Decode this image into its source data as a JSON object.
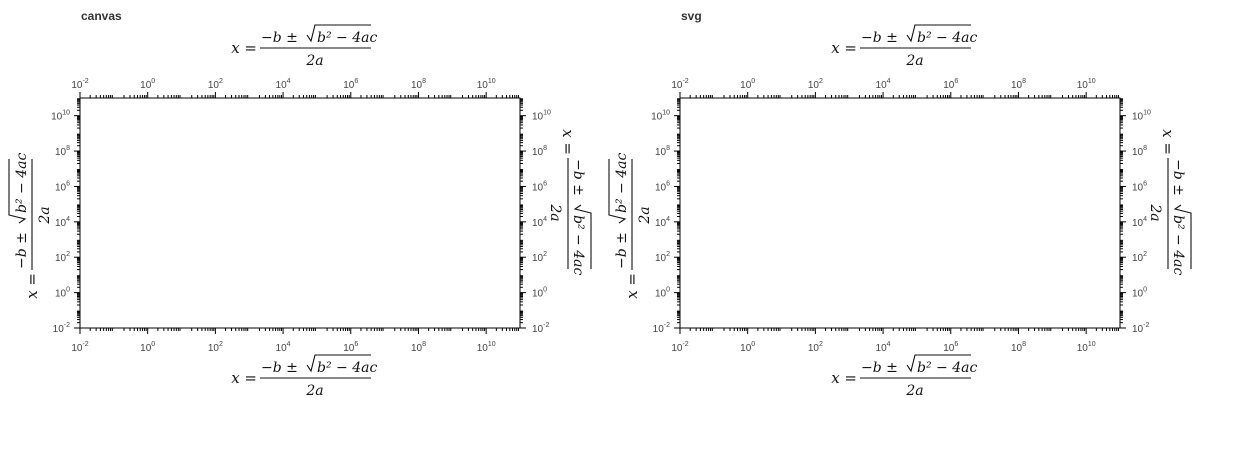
{
  "panels": [
    {
      "title": "canvas"
    },
    {
      "title": "svg"
    }
  ],
  "chart_data": [
    {
      "type": "scatter",
      "title": "",
      "xscale": "log",
      "yscale": "log",
      "xlim": [
        0.01,
        100000000000
      ],
      "ylim": [
        0.01,
        100000000000
      ],
      "x_ticks": [
        "10^-2",
        "10^0",
        "10^2",
        "10^4",
        "10^6",
        "10^8",
        "10^10"
      ],
      "y_ticks": [
        "10^-2",
        "10^0",
        "10^2",
        "10^4",
        "10^6",
        "10^8",
        "10^10"
      ],
      "xlabel": "x = (−b ± √(b² − 4ac)) / 2a",
      "ylabel": "x = (−b ± √(b² − 4ac)) / 2a",
      "x2label": "x = (−b ± √(b² − 4ac)) / 2a",
      "y2label": "x = (−b ± √(b² − 4ac)) / 2a",
      "grid": false,
      "series": []
    },
    {
      "type": "scatter",
      "title": "",
      "xscale": "log",
      "yscale": "log",
      "xlim": [
        0.01,
        100000000000
      ],
      "ylim": [
        0.01,
        100000000000
      ],
      "x_ticks": [
        "10^-2",
        "10^0",
        "10^2",
        "10^4",
        "10^6",
        "10^8",
        "10^10"
      ],
      "y_ticks": [
        "10^-2",
        "10^0",
        "10^2",
        "10^4",
        "10^6",
        "10^8",
        "10^10"
      ],
      "xlabel": "x = (−b ± √(b² − 4ac)) / 2a",
      "ylabel": "x = (−b ± √(b² − 4ac)) / 2a",
      "x2label": "x = (−b ± √(b² − 4ac)) / 2a",
      "y2label": "x = (−b ± √(b² − 4ac)) / 2a",
      "grid": false,
      "series": []
    }
  ]
}
